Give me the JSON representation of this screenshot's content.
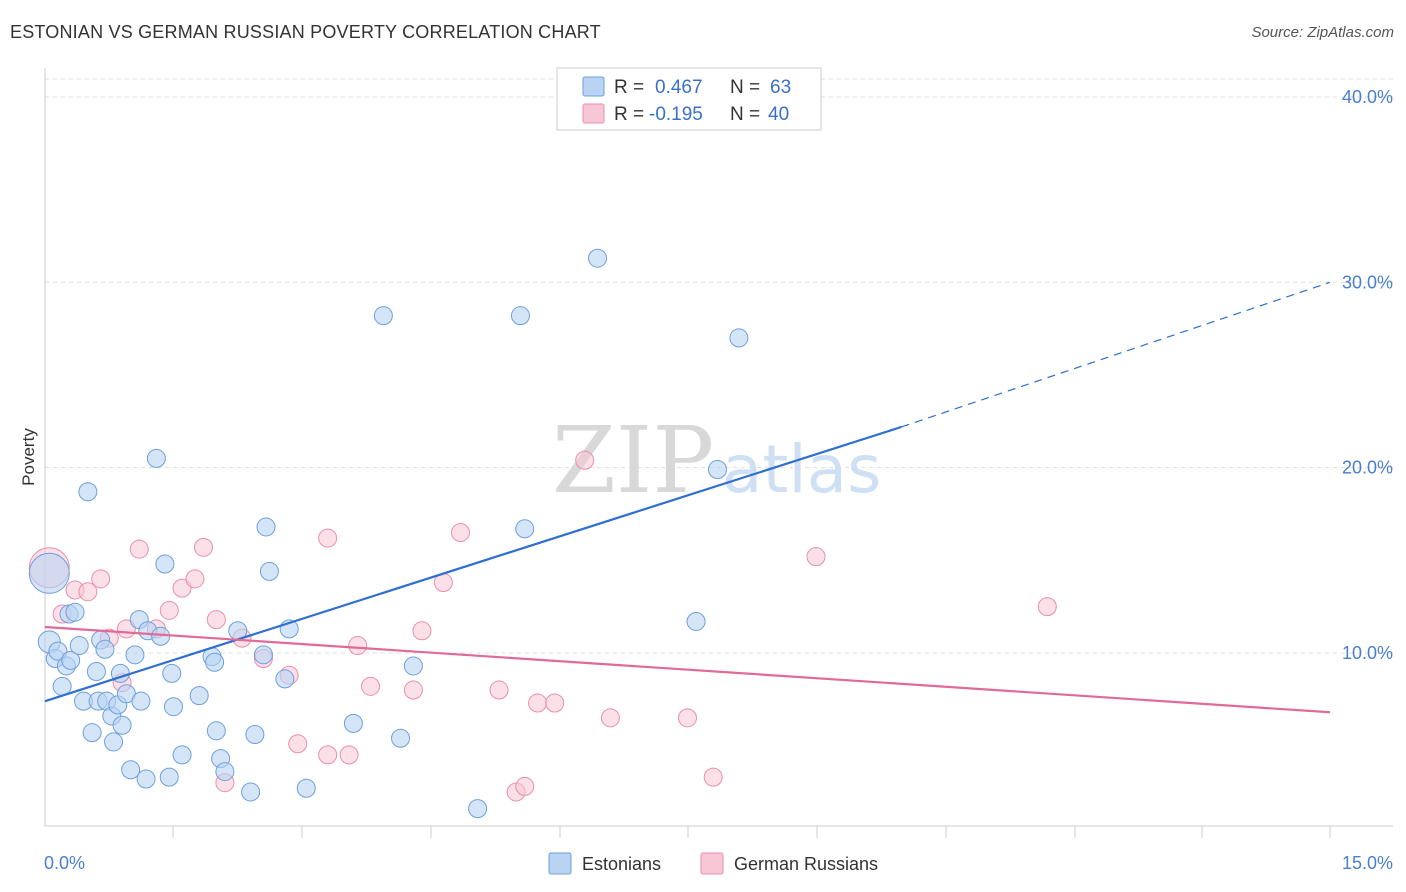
{
  "header": {
    "title": "ESTONIAN VS GERMAN RUSSIAN POVERTY CORRELATION CHART",
    "source": "Source: ZipAtlas.com"
  },
  "watermark": {
    "zip": "ZIP",
    "atlas": "atlas"
  },
  "colors": {
    "blue_fill": "#b9d3f3",
    "blue_stroke": "#6e9fdc",
    "blue_line": "#2e6fd0",
    "pink_fill": "#f8c7d6",
    "pink_stroke": "#e98fae",
    "pink_line": "#e06a98",
    "grid": "#dddddd",
    "tick_text": "#4a7fcf"
  },
  "legend": {
    "rows": [
      {
        "r_label": "R =",
        "r_value": "0.467",
        "n_label": "N =",
        "n_value": "63"
      },
      {
        "r_label": "R =",
        "r_value": "-0.195",
        "n_label": "N =",
        "n_value": "40"
      }
    ]
  },
  "bottom_legend": {
    "items": [
      "Estonians",
      "German Russians"
    ]
  },
  "chart_data": {
    "type": "scatter",
    "title": "ESTONIAN VS GERMAN RUSSIAN POVERTY CORRELATION CHART",
    "xlabel": "",
    "ylabel": "Poverty",
    "xlim": [
      0,
      15
    ],
    "ylim": [
      0,
      40
    ],
    "x_tick_labels": [
      "0.0%",
      "15.0%"
    ],
    "y_ticks": [
      10,
      20,
      30,
      40
    ],
    "y_tick_labels": [
      "10.0%",
      "20.0%",
      "30.0%",
      "40.0%"
    ],
    "grid": true,
    "legend_position": "top-center",
    "series": [
      {
        "name": "Estonians",
        "r": 0.467,
        "n": 63,
        "trend": {
          "x0": 0,
          "y0": 7.4,
          "x1": 10,
          "y1": 22.2,
          "dashed_to_x": 15,
          "dashed_to_y": 30.0
        },
        "points": [
          [
            0.05,
            14.3
          ],
          [
            0.05,
            10.6
          ],
          [
            0.12,
            9.7
          ],
          [
            0.15,
            10.1
          ],
          [
            0.2,
            8.2
          ],
          [
            0.25,
            9.3
          ],
          [
            0.28,
            12.1
          ],
          [
            0.3,
            9.6
          ],
          [
            0.35,
            12.2
          ],
          [
            0.4,
            10.4
          ],
          [
            0.45,
            7.4
          ],
          [
            0.5,
            18.7
          ],
          [
            0.55,
            5.7
          ],
          [
            0.6,
            9.0
          ],
          [
            0.62,
            7.4
          ],
          [
            0.65,
            10.7
          ],
          [
            0.7,
            10.2
          ],
          [
            0.72,
            7.4
          ],
          [
            0.78,
            6.6
          ],
          [
            0.8,
            5.2
          ],
          [
            0.85,
            7.2
          ],
          [
            0.88,
            8.9
          ],
          [
            0.9,
            6.1
          ],
          [
            0.95,
            7.8
          ],
          [
            1.0,
            3.7
          ],
          [
            1.05,
            9.9
          ],
          [
            1.1,
            11.8
          ],
          [
            1.12,
            7.4
          ],
          [
            1.18,
            3.2
          ],
          [
            1.2,
            11.2
          ],
          [
            1.3,
            20.5
          ],
          [
            1.35,
            10.9
          ],
          [
            1.4,
            14.8
          ],
          [
            1.45,
            3.3
          ],
          [
            1.48,
            8.9
          ],
          [
            1.5,
            7.1
          ],
          [
            1.6,
            4.5
          ],
          [
            1.8,
            7.7
          ],
          [
            1.95,
            9.8
          ],
          [
            1.98,
            9.5
          ],
          [
            2.0,
            5.8
          ],
          [
            2.05,
            4.3
          ],
          [
            2.1,
            3.6
          ],
          [
            2.25,
            11.2
          ],
          [
            2.4,
            2.5
          ],
          [
            2.45,
            5.6
          ],
          [
            2.55,
            9.9
          ],
          [
            2.58,
            16.8
          ],
          [
            2.62,
            14.4
          ],
          [
            2.8,
            8.6
          ],
          [
            2.85,
            11.3
          ],
          [
            3.05,
            2.7
          ],
          [
            3.6,
            6.2
          ],
          [
            3.95,
            28.2
          ],
          [
            4.15,
            5.4
          ],
          [
            4.3,
            9.3
          ],
          [
            5.05,
            1.6
          ],
          [
            5.55,
            28.2
          ],
          [
            5.6,
            16.7
          ],
          [
            6.45,
            31.3
          ],
          [
            7.6,
            11.7
          ],
          [
            7.85,
            19.9
          ],
          [
            8.1,
            27.0
          ]
        ]
      },
      {
        "name": "German Russians",
        "r": -0.195,
        "n": 40,
        "trend": {
          "x0": 0,
          "y0": 11.4,
          "x1": 15,
          "y1": 6.8
        },
        "points": [
          [
            0.05,
            14.6
          ],
          [
            0.2,
            12.1
          ],
          [
            0.35,
            13.4
          ],
          [
            0.5,
            13.3
          ],
          [
            0.65,
            14.0
          ],
          [
            0.75,
            10.8
          ],
          [
            0.9,
            8.4
          ],
          [
            0.95,
            11.3
          ],
          [
            1.1,
            15.6
          ],
          [
            1.3,
            11.3
          ],
          [
            1.45,
            12.3
          ],
          [
            1.6,
            13.5
          ],
          [
            1.75,
            14.0
          ],
          [
            1.85,
            15.7
          ],
          [
            2.0,
            11.8
          ],
          [
            2.1,
            3.0
          ],
          [
            2.3,
            10.8
          ],
          [
            2.55,
            9.7
          ],
          [
            2.85,
            8.8
          ],
          [
            2.95,
            5.1
          ],
          [
            3.3,
            16.2
          ],
          [
            3.3,
            4.5
          ],
          [
            3.55,
            4.5
          ],
          [
            3.65,
            10.4
          ],
          [
            3.8,
            8.2
          ],
          [
            4.3,
            8.0
          ],
          [
            4.4,
            11.2
          ],
          [
            4.65,
            13.8
          ],
          [
            4.85,
            16.5
          ],
          [
            5.3,
            8.0
          ],
          [
            5.5,
            2.5
          ],
          [
            5.6,
            2.8
          ],
          [
            5.75,
            7.3
          ],
          [
            5.95,
            7.3
          ],
          [
            6.3,
            20.4
          ],
          [
            6.6,
            6.5
          ],
          [
            7.5,
            6.5
          ],
          [
            7.8,
            3.3
          ],
          [
            9.0,
            15.2
          ],
          [
            11.7,
            12.5
          ]
        ]
      }
    ]
  }
}
